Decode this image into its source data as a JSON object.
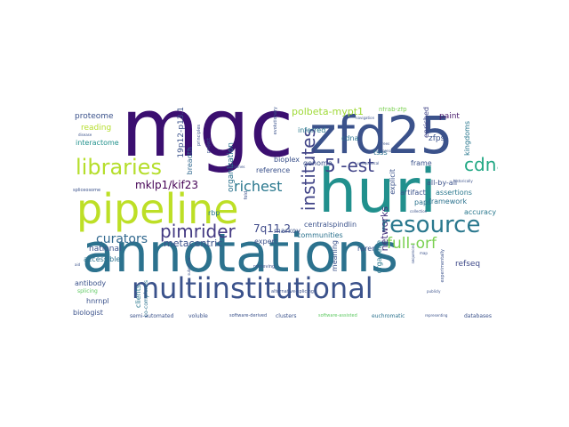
{
  "words": [
    {
      "text": "annotations",
      "color": "#2c728e"
    },
    {
      "text": "mgc",
      "color": "#3b0f70"
    },
    {
      "text": "huri",
      "color": "#21908d"
    },
    {
      "text": "zfd25",
      "color": "#3b528b"
    },
    {
      "text": "pipeline",
      "color": "#bddf26"
    },
    {
      "text": "multiinstitutional",
      "color": "#3b528b"
    },
    {
      "text": "resource",
      "color": "#2a788e"
    },
    {
      "text": "libraries",
      "color": "#b5de2b"
    },
    {
      "text": "institutes",
      "color": "#414487"
    },
    {
      "text": "cdnas",
      "color": "#22a884"
    },
    {
      "text": "5'-est",
      "color": "#404387"
    },
    {
      "text": "pimrider",
      "color": "#443a83"
    },
    {
      "text": "richest",
      "color": "#2a788e"
    },
    {
      "text": "full-orf",
      "color": "#7ad151"
    },
    {
      "text": "curators",
      "color": "#31688e"
    },
    {
      "text": "mklp1/kif23",
      "color": "#440154"
    },
    {
      "text": "7q11.2",
      "color": "#3e4989"
    },
    {
      "text": "metacentric",
      "color": "#3b528b"
    },
    {
      "text": "polbeta-mypt1",
      "color": "#a0da39"
    },
    {
      "text": "networks",
      "color": "#46337e"
    },
    {
      "text": "refseq",
      "color": "#3e4989"
    },
    {
      "text": "proteome",
      "color": "#3b528b"
    },
    {
      "text": "reading",
      "color": "#b5de2b"
    },
    {
      "text": "interactome",
      "color": "#21918c"
    },
    {
      "text": "19p12-p13.1",
      "color": "#3b528b"
    },
    {
      "text": "breadth",
      "color": "#31688e"
    },
    {
      "text": "organization",
      "color": "#2c728e"
    },
    {
      "text": "bioplex",
      "color": "#3b528b"
    },
    {
      "text": "inferred",
      "color": "#2a788e"
    },
    {
      "text": "reference",
      "color": "#3b528b"
    },
    {
      "text": "genome",
      "color": "#3b528b"
    },
    {
      "text": "cdna",
      "color": "#2c728e"
    },
    {
      "text": "nfrab-zfp",
      "color": "#7ad151"
    },
    {
      "text": "enriched",
      "color": "#414487"
    },
    {
      "text": "paint",
      "color": "#481a6c"
    },
    {
      "text": "zfps",
      "color": "#3b528b"
    },
    {
      "text": "kingdoms",
      "color": "#2a788e"
    },
    {
      "text": "tsss",
      "color": "#2c728e"
    },
    {
      "text": "frame",
      "color": "#3b528b"
    },
    {
      "text": "all-by-all",
      "color": "#3b528b"
    },
    {
      "text": "assertions",
      "color": "#2a788e"
    },
    {
      "text": "framework",
      "color": "#2c728e"
    },
    {
      "text": "artifact",
      "color": "#3b528b"
    },
    {
      "text": "paps",
      "color": "#2c728e"
    },
    {
      "text": "accuracy",
      "color": "#2a788e"
    },
    {
      "text": "explicit",
      "color": "#3b528b"
    },
    {
      "text": "national",
      "color": "#3b528b"
    },
    {
      "text": "accessible",
      "color": "#2c728e"
    },
    {
      "text": "rbp",
      "color": "#2a788e"
    },
    {
      "text": "expert",
      "color": "#3b528b"
    },
    {
      "text": "markov",
      "color": "#3b528b"
    },
    {
      "text": "communities",
      "color": "#2c728e"
    },
    {
      "text": "centralspindlin",
      "color": "#3b528b"
    },
    {
      "text": "rarer",
      "color": "#3b528b"
    },
    {
      "text": "organelle",
      "color": "#2a788e"
    },
    {
      "text": "meaning",
      "color": "#3b528b"
    },
    {
      "text": "hnrnpl",
      "color": "#3b528b"
    },
    {
      "text": "biologist",
      "color": "#3b528b"
    },
    {
      "text": "antibody",
      "color": "#3b528b"
    },
    {
      "text": "clients",
      "color": "#2a788e"
    },
    {
      "text": "splicing",
      "color": "#5ec962"
    },
    {
      "text": "co-complexes",
      "color": "#2c728e"
    },
    {
      "text": "semi-automated",
      "color": "#3b528b"
    },
    {
      "text": "voluble",
      "color": "#3b528b"
    },
    {
      "text": "clusters",
      "color": "#3b528b"
    },
    {
      "text": "euchromatic",
      "color": "#2c728e"
    },
    {
      "text": "software-assisted",
      "color": "#5ec962"
    },
    {
      "text": "databases",
      "color": "#3b528b"
    },
    {
      "text": "project",
      "color": "#3b528b"
    },
    {
      "text": "principles",
      "color": "#3b528b"
    },
    {
      "text": "evolutionary",
      "color": "#3b528b"
    },
    {
      "text": "guidelines",
      "color": "#3b528b"
    },
    {
      "text": "retrieving",
      "color": "#3b528b"
    },
    {
      "text": "alternative-splicing",
      "color": "#3b528b"
    },
    {
      "text": "software-derived",
      "color": "#3b528b"
    },
    {
      "text": "representing",
      "color": "#3b528b"
    },
    {
      "text": "publicly",
      "color": "#3b528b"
    },
    {
      "text": "experimentally",
      "color": "#3b528b"
    },
    {
      "text": "navigation",
      "color": "#3b528b"
    },
    {
      "text": "historically",
      "color": "#3b528b"
    },
    {
      "text": "collection",
      "color": "#3b528b"
    },
    {
      "text": "genotype",
      "color": "#3b528b"
    },
    {
      "text": "unequivocal",
      "color": "#3b528b"
    },
    {
      "text": "spliceosome",
      "color": "#3b528b"
    },
    {
      "text": "sequences",
      "color": "#3b528b"
    },
    {
      "text": "subcellular",
      "color": "#3b528b"
    },
    {
      "text": "disease",
      "color": "#3b528b"
    },
    {
      "text": "trees",
      "color": "#3b528b"
    },
    {
      "text": "fold",
      "color": "#3b528b"
    },
    {
      "text": "map",
      "color": "#3b528b"
    },
    {
      "text": "aid",
      "color": "#3b528b"
    }
  ]
}
